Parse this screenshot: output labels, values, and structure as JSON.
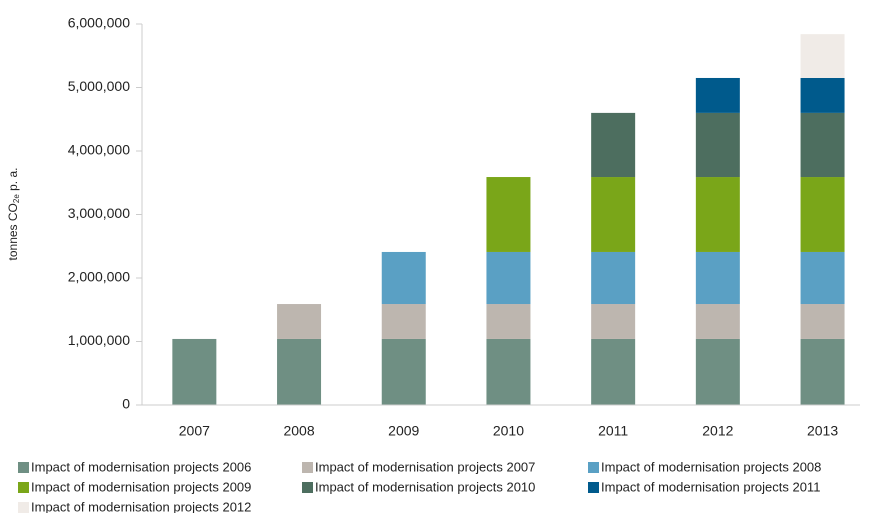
{
  "chart_data": {
    "type": "stacked_bar",
    "y_label": [
      "tonnes CO",
      "2e",
      " p. a."
    ],
    "categories": [
      "2007",
      "2008",
      "2009",
      "2010",
      "2011",
      "2012",
      "2013"
    ],
    "series": [
      {
        "name": "Impact of modernisation projects 2006",
        "color": "#6f8f83",
        "values": [
          1040000,
          1040000,
          1040000,
          1040000,
          1040000,
          1040000,
          1040000
        ]
      },
      {
        "name": "Impact of modernisation projects 2007",
        "color": "#bdb6af",
        "values": [
          null,
          550000,
          550000,
          550000,
          550000,
          550000,
          550000
        ]
      },
      {
        "name": "Impact of modernisation projects 2008",
        "color": "#5aa0c4",
        "values": [
          null,
          null,
          820000,
          820000,
          820000,
          820000,
          820000
        ]
      },
      {
        "name": "Impact of modernisation projects 2009",
        "color": "#7aa619",
        "values": [
          null,
          null,
          null,
          1180000,
          1180000,
          1180000,
          1180000
        ]
      },
      {
        "name": "Impact of modernisation projects 2010",
        "color": "#4d6e5f",
        "values": [
          null,
          null,
          null,
          null,
          1010000,
          1010000,
          1010000
        ]
      },
      {
        "name": "Impact of modernisation projects 2011",
        "color": "#005a8c",
        "values": [
          null,
          null,
          null,
          null,
          null,
          550000,
          550000
        ]
      },
      {
        "name": "Impact of modernisation projects 2012",
        "color": "#f0ebe7",
        "values": [
          null,
          null,
          null,
          null,
          null,
          null,
          690000
        ]
      }
    ],
    "ylim": [
      0,
      6000000
    ],
    "yticks": [
      0,
      {
        "value": 1000000,
        "label": "1,000,000"
      },
      {
        "value": 2000000,
        "label": "2,000,000"
      },
      {
        "value": 3000000,
        "label": "3,000,000"
      },
      {
        "value": 4000000,
        "label": "4,000,000"
      },
      {
        "value": 5000000,
        "label": "5,000,000"
      },
      {
        "value": 6000000,
        "label": "6,000,000"
      }
    ],
    "legend": "bottom"
  }
}
